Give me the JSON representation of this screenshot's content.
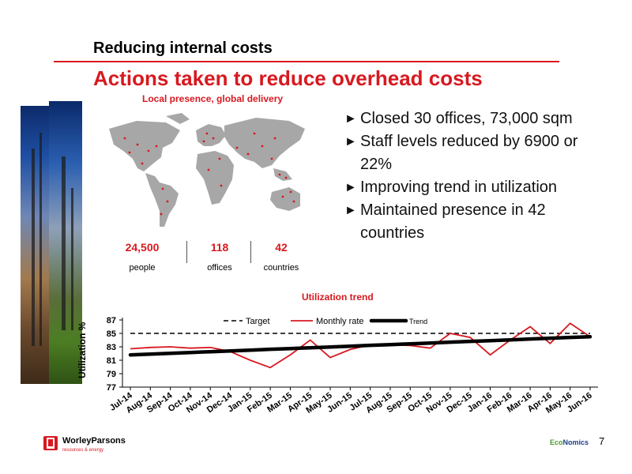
{
  "header": {
    "kicker": "Reducing internal costs",
    "title": "Actions taken to reduce overhead costs"
  },
  "map_panel": {
    "subtitle": "Local presence, global delivery",
    "stats": [
      {
        "value": "24,500",
        "label": "people"
      },
      {
        "value": "118",
        "label": "offices"
      },
      {
        "value": "42",
        "label": "countries"
      }
    ]
  },
  "bullets": [
    "Closed 30 offices, 73,000 sqm",
    "Staff levels reduced by 6900 or 22%",
    "Improving trend in utilization",
    "Maintained presence in 42 countries"
  ],
  "footer": {
    "logo_name": "WorleyParsons",
    "logo_tagline": "resources & energy",
    "economics_eco": "Eco",
    "economics_rest": "Nomics",
    "page_number": "7"
  },
  "chart_data": {
    "type": "line",
    "title": "Utilization trend",
    "ylabel": "Utilization %",
    "xlabel": "",
    "ylim": [
      77,
      87
    ],
    "yticks": [
      77,
      79,
      81,
      83,
      85,
      87
    ],
    "grid": false,
    "legend_position": "top-center",
    "categories": [
      "Jul-14",
      "Aug-14",
      "Sep-14",
      "Oct-14",
      "Nov-14",
      "Dec-14",
      "Jan-15",
      "Feb-15",
      "Mar-15",
      "Apr-15",
      "May-15",
      "Jun-15",
      "Jul-15",
      "Aug-15",
      "Sep-15",
      "Oct-15",
      "Nov-15",
      "Dec-15",
      "Jan-16",
      "Feb-16",
      "Mar-16",
      "Apr-16",
      "May-16",
      "Jun-16"
    ],
    "series": [
      {
        "name": "Target",
        "style": "dashed",
        "color": "#000000",
        "values": [
          85,
          85,
          85,
          85,
          85,
          85,
          85,
          85,
          85,
          85,
          85,
          85,
          85,
          85,
          85,
          85,
          85,
          85,
          85,
          85,
          85,
          85,
          85,
          85
        ]
      },
      {
        "name": "Monthly rate",
        "style": "solid",
        "color": "#d71920",
        "values": [
          82.7,
          82.9,
          83.0,
          82.8,
          82.9,
          82.3,
          81.0,
          79.9,
          81.8,
          84.0,
          81.4,
          82.6,
          83.3,
          83.3,
          83.2,
          82.8,
          85.0,
          84.4,
          81.8,
          84.0,
          86.0,
          83.5,
          86.5,
          84.5
        ]
      },
      {
        "name": "Trend",
        "style": "bold",
        "color": "#000000",
        "values": [
          81.8,
          81.92,
          82.04,
          82.15,
          82.27,
          82.39,
          82.51,
          82.63,
          82.74,
          82.86,
          82.98,
          83.1,
          83.22,
          83.33,
          83.45,
          83.57,
          83.69,
          83.81,
          83.92,
          84.04,
          84.16,
          84.28,
          84.4,
          84.51
        ]
      }
    ]
  }
}
